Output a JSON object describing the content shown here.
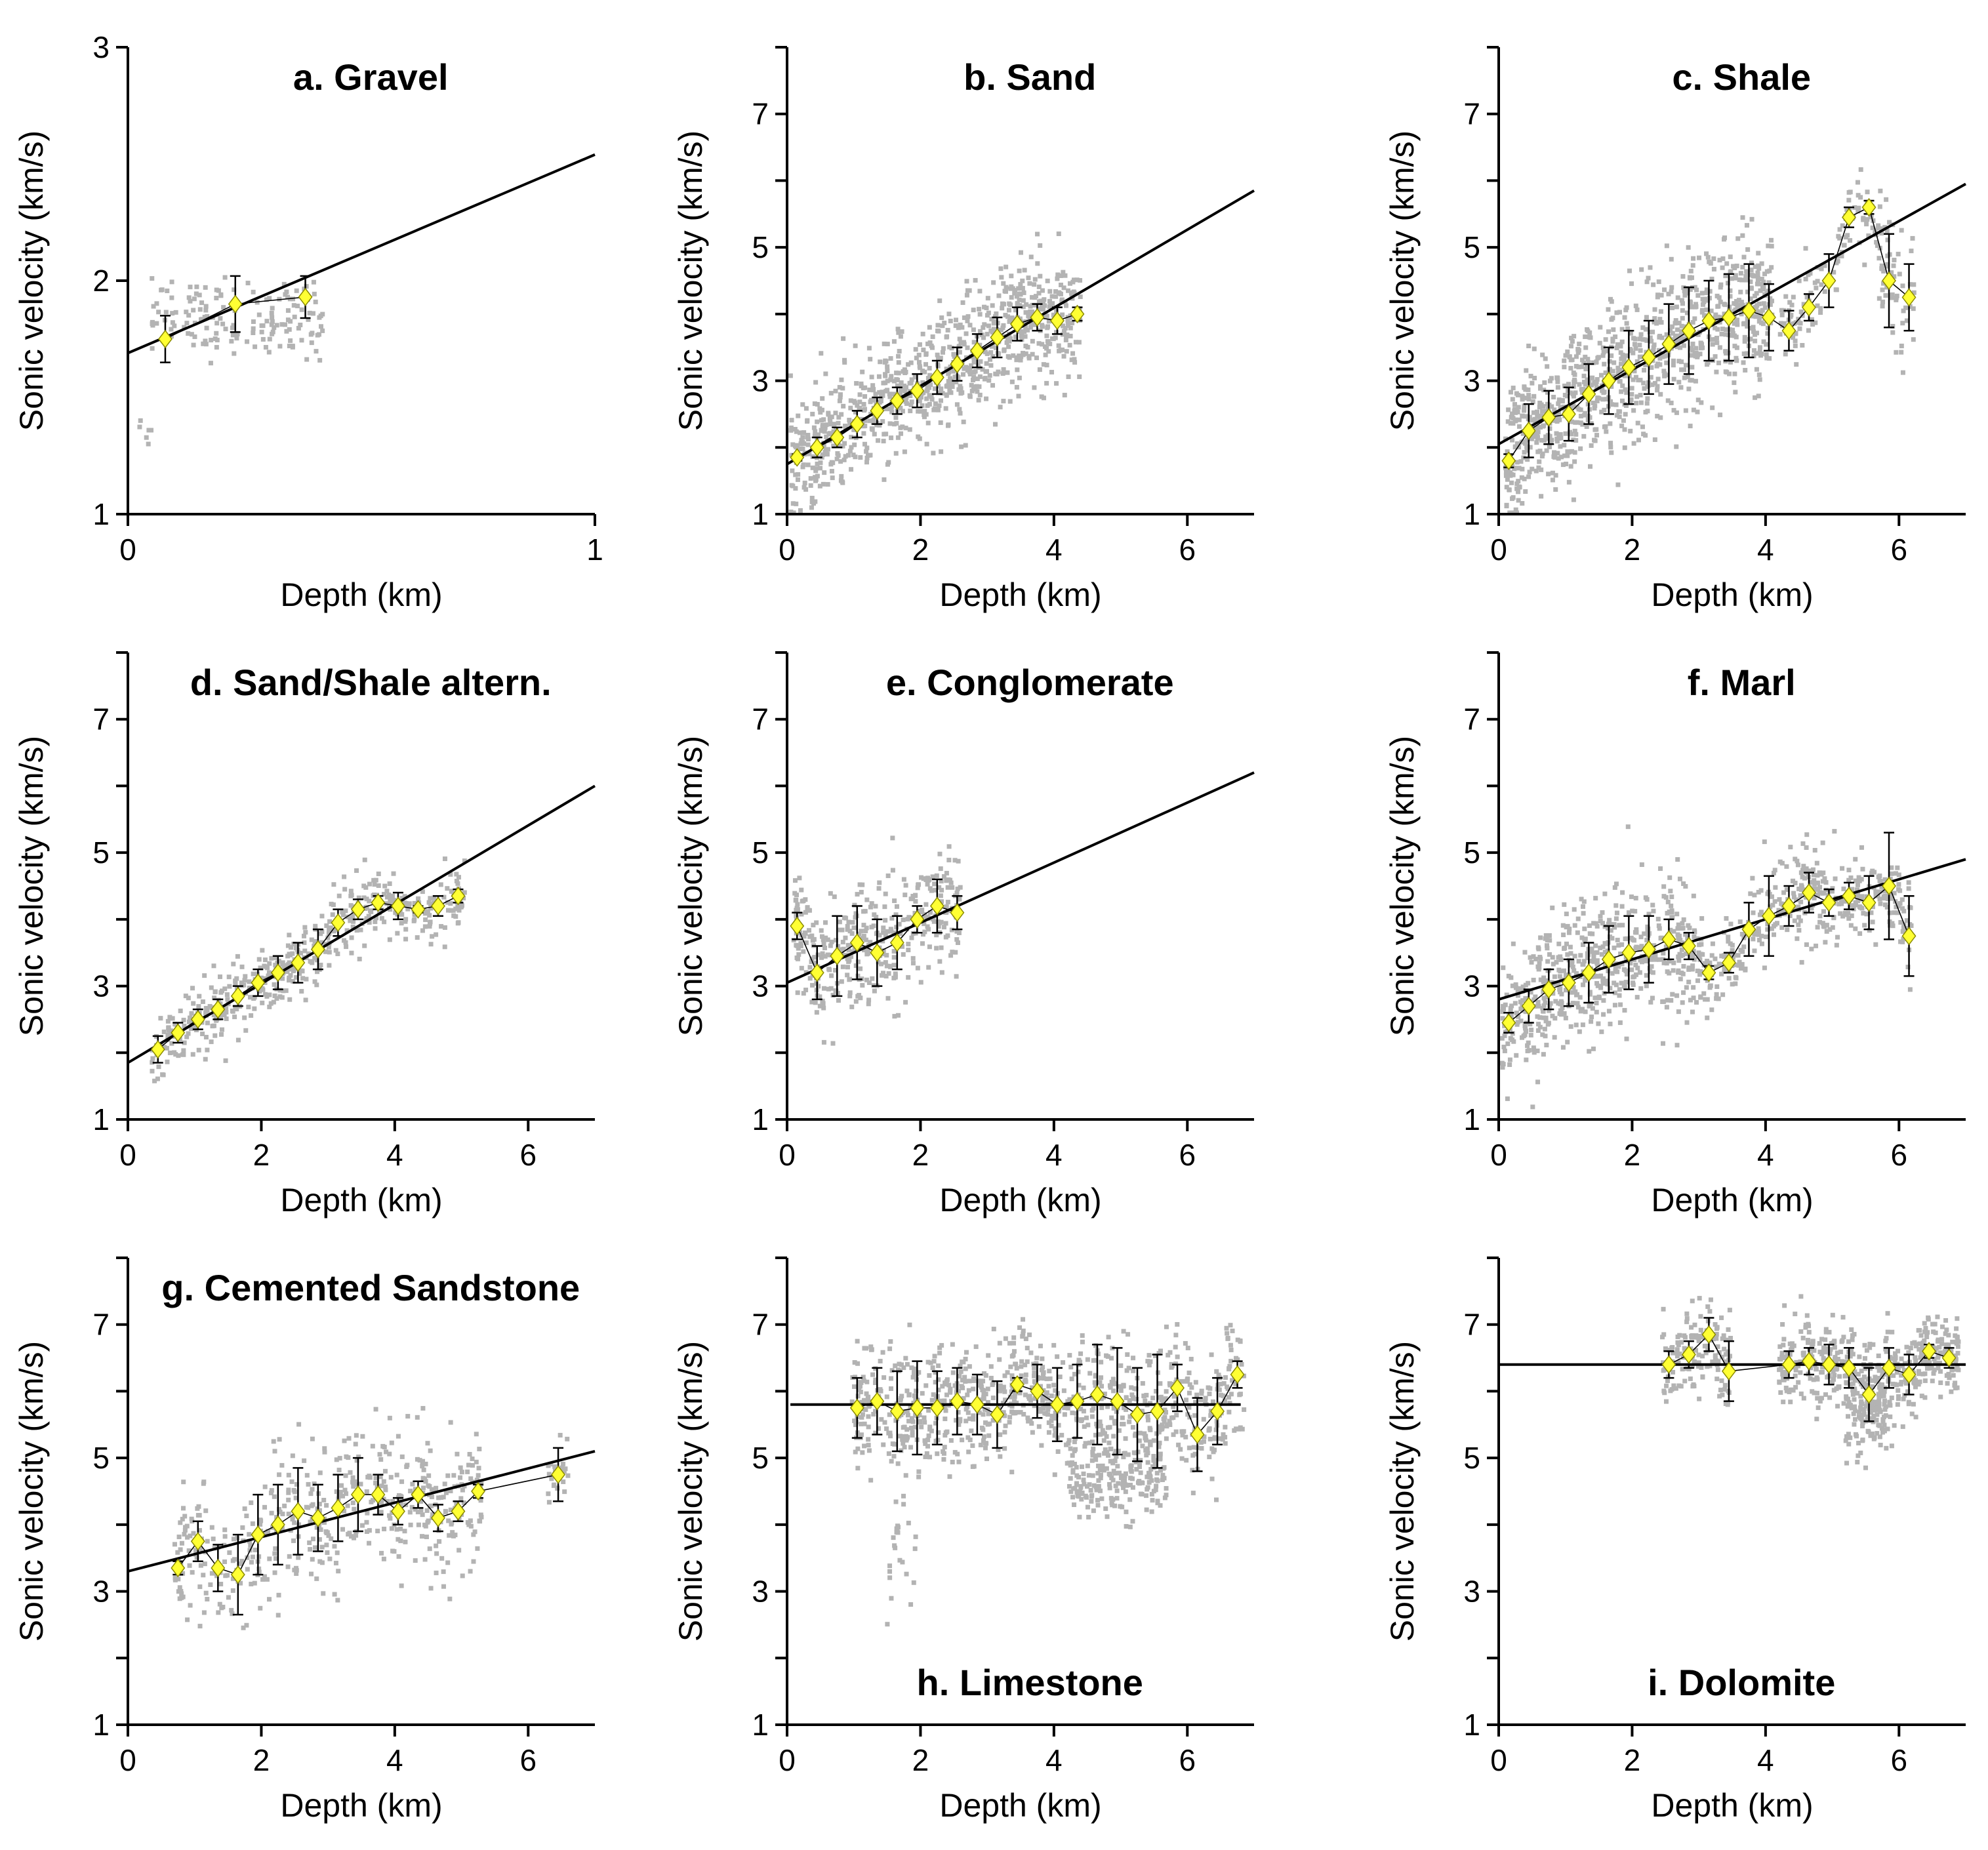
{
  "figure": {
    "shared_y_label": "Sonic velocity (km/s)",
    "shared_x_label": "Depth (km)"
  },
  "chart_data": [
    {
      "id": "a",
      "type": "scatter",
      "title": "a. Gravel",
      "title_position": "top",
      "xlabel": "Depth (km)",
      "ylabel": "Sonic velocity (km/s)",
      "xlim": [
        0,
        1
      ],
      "ylim": [
        1,
        3
      ],
      "xticks": [
        0,
        1
      ],
      "yticks": [
        1,
        2,
        3
      ],
      "ytick_labels": [
        "1",
        "2",
        "3"
      ],
      "fit_line": {
        "x": [
          0,
          1
        ],
        "y": [
          1.69,
          2.54
        ]
      },
      "scatter_clusters": [
        {
          "x": [
            0.02,
            0.05
          ],
          "y_center": 1.38,
          "y_spread": 0.05,
          "n": 6
        },
        {
          "x": [
            0.05,
            0.42
          ],
          "y_center": 1.84,
          "y_spread": 0.08,
          "n": 160
        }
      ],
      "binned_means": {
        "x": [
          0.08,
          0.23,
          0.38
        ],
        "y": [
          1.75,
          1.9,
          1.93
        ],
        "sd": [
          0.1,
          0.12,
          0.09
        ]
      }
    },
    {
      "id": "b",
      "type": "scatter",
      "title": "b. Sand",
      "title_position": "top",
      "xlabel": "Depth (km)",
      "ylabel": "Sonic velocity (km/s)",
      "xlim": [
        0,
        7
      ],
      "ylim": [
        1,
        8
      ],
      "xticks": [
        0,
        2,
        4,
        6
      ],
      "yticks": [
        1,
        2,
        3,
        4,
        5,
        6,
        7,
        8
      ],
      "ytick_labels": [
        "1",
        "",
        "3",
        "",
        "5",
        "",
        "7",
        ""
      ],
      "fit_line": {
        "x": [
          0,
          7
        ],
        "y": [
          1.75,
          5.85
        ]
      },
      "scatter_clusters": [
        {
          "x": [
            0.05,
            4.4
          ],
          "y_center": "mean",
          "y_spread": 0.45,
          "n": 900
        }
      ],
      "binned_means": {
        "x": [
          0.15,
          0.45,
          0.75,
          1.05,
          1.35,
          1.65,
          1.95,
          2.25,
          2.55,
          2.85,
          3.15,
          3.45,
          3.75,
          4.05,
          4.35
        ],
        "y": [
          1.85,
          2.0,
          2.15,
          2.35,
          2.55,
          2.7,
          2.85,
          3.05,
          3.25,
          3.45,
          3.65,
          3.85,
          3.95,
          3.9,
          4.0
        ],
        "sd": [
          0.05,
          0.15,
          0.15,
          0.2,
          0.2,
          0.2,
          0.25,
          0.25,
          0.25,
          0.25,
          0.3,
          0.25,
          0.2,
          0.2,
          0.1
        ]
      }
    },
    {
      "id": "c",
      "type": "scatter",
      "title": "c. Shale",
      "title_position": "top",
      "xlabel": "Depth (km)",
      "ylabel": "Sonic velocity (km/s)",
      "xlim": [
        0,
        7
      ],
      "ylim": [
        1,
        8
      ],
      "xticks": [
        0,
        2,
        4,
        6
      ],
      "yticks": [
        1,
        2,
        3,
        4,
        5,
        6,
        7,
        8
      ],
      "ytick_labels": [
        "1",
        "",
        "3",
        "",
        "5",
        "",
        "7",
        ""
      ],
      "fit_line": {
        "x": [
          0,
          7
        ],
        "y": [
          2.05,
          5.95
        ]
      },
      "scatter_clusters": [
        {
          "x": [
            0.1,
            4.1
          ],
          "y_center": "mean",
          "y_spread": 0.55,
          "n": 1000
        },
        {
          "x": [
            4.2,
            4.9
          ],
          "y_center": "mean",
          "y_spread": 0.3,
          "n": 60
        },
        {
          "x": [
            5.0,
            5.7
          ],
          "y_center": "mean",
          "y_spread": 0.25,
          "n": 60
        },
        {
          "x": [
            5.7,
            6.25
          ],
          "y_center": "mean",
          "y_spread": 0.5,
          "n": 60
        }
      ],
      "binned_means": {
        "x": [
          0.15,
          0.45,
          0.75,
          1.05,
          1.35,
          1.65,
          1.95,
          2.25,
          2.55,
          2.85,
          3.15,
          3.45,
          3.75,
          4.05,
          4.35,
          4.65,
          4.95,
          5.25,
          5.55,
          5.85,
          6.15
        ],
        "y": [
          1.8,
          2.25,
          2.45,
          2.5,
          2.8,
          3.0,
          3.2,
          3.35,
          3.55,
          3.75,
          3.9,
          3.95,
          4.05,
          3.95,
          3.75,
          4.1,
          4.5,
          5.45,
          5.6,
          4.5,
          4.25
        ],
        "sd": [
          0.1,
          0.4,
          0.4,
          0.4,
          0.45,
          0.5,
          0.55,
          0.55,
          0.6,
          0.65,
          0.6,
          0.65,
          0.7,
          0.5,
          0.3,
          0.2,
          0.4,
          0.15,
          0.1,
          0.7,
          0.5
        ]
      }
    },
    {
      "id": "d",
      "type": "scatter",
      "title": "d. Sand/Shale altern.",
      "title_position": "top",
      "xlabel": "Depth (km)",
      "ylabel": "Sonic velocity (km/s)",
      "xlim": [
        0,
        7
      ],
      "ylim": [
        1,
        8
      ],
      "xticks": [
        0,
        2,
        4,
        6
      ],
      "yticks": [
        1,
        2,
        3,
        4,
        5,
        6,
        7,
        8
      ],
      "ytick_labels": [
        "1",
        "",
        "3",
        "",
        "5",
        "",
        "7",
        ""
      ],
      "fit_line": {
        "x": [
          0,
          7
        ],
        "y": [
          1.85,
          6.0
        ]
      },
      "scatter_clusters": [
        {
          "x": [
            0.35,
            5.05
          ],
          "y_center": "mean",
          "y_spread": 0.25,
          "n": 500
        }
      ],
      "binned_means": {
        "x": [
          0.45,
          0.75,
          1.05,
          1.35,
          1.65,
          1.95,
          2.25,
          2.55,
          2.85,
          3.15,
          3.45,
          3.75,
          4.05,
          4.35,
          4.65,
          4.95
        ],
        "y": [
          2.05,
          2.3,
          2.5,
          2.65,
          2.85,
          3.05,
          3.2,
          3.35,
          3.55,
          3.95,
          4.15,
          4.25,
          4.2,
          4.15,
          4.2,
          4.35
        ],
        "sd": [
          0.2,
          0.15,
          0.15,
          0.15,
          0.15,
          0.2,
          0.25,
          0.3,
          0.3,
          0.2,
          0.15,
          0.1,
          0.2,
          0.05,
          0.15,
          0.1
        ]
      }
    },
    {
      "id": "e",
      "type": "scatter",
      "title": "e. Conglomerate",
      "title_position": "top",
      "xlabel": "Depth (km)",
      "ylabel": "Sonic velocity (km/s)",
      "xlim": [
        0,
        7
      ],
      "ylim": [
        1,
        8
      ],
      "xticks": [
        0,
        2,
        4,
        6
      ],
      "yticks": [
        1,
        2,
        3,
        4,
        5,
        6,
        7,
        8
      ],
      "ytick_labels": [
        "1",
        "",
        "3",
        "",
        "5",
        "",
        "7",
        ""
      ],
      "fit_line": {
        "x": [
          0,
          7
        ],
        "y": [
          3.05,
          6.2
        ]
      },
      "scatter_clusters": [
        {
          "x": [
            0.1,
            2.6
          ],
          "y_center": "mean",
          "y_spread": 0.45,
          "n": 400
        }
      ],
      "binned_means": {
        "x": [
          0.15,
          0.45,
          0.75,
          1.05,
          1.35,
          1.65,
          1.95,
          2.25,
          2.55
        ],
        "y": [
          3.9,
          3.2,
          3.45,
          3.65,
          3.5,
          3.65,
          4.0,
          4.2,
          4.1
        ],
        "sd": [
          0.2,
          0.4,
          0.6,
          0.55,
          0.5,
          0.4,
          0.2,
          0.4,
          0.25
        ]
      }
    },
    {
      "id": "f",
      "type": "scatter",
      "title": "f. Marl",
      "title_position": "top",
      "xlabel": "Depth (km)",
      "ylabel": "Sonic velocity (km/s)",
      "xlim": [
        0,
        7
      ],
      "ylim": [
        1,
        8
      ],
      "xticks": [
        0,
        2,
        4,
        6
      ],
      "yticks": [
        1,
        2,
        3,
        4,
        5,
        6,
        7,
        8
      ],
      "ytick_labels": [
        "1",
        "",
        "3",
        "",
        "5",
        "",
        "7",
        ""
      ],
      "fit_line": {
        "x": [
          0,
          7
        ],
        "y": [
          2.8,
          4.9
        ]
      },
      "scatter_clusters": [
        {
          "x": [
            0.05,
            3.0
          ],
          "y_center": "mean",
          "y_spread": 0.5,
          "n": 600
        },
        {
          "x": [
            3.0,
            6.2
          ],
          "y_center": "mean",
          "y_spread": 0.35,
          "n": 400
        }
      ],
      "binned_means": {
        "x": [
          0.15,
          0.45,
          0.75,
          1.05,
          1.35,
          1.65,
          1.95,
          2.25,
          2.55,
          2.85,
          3.15,
          3.45,
          3.75,
          4.05,
          4.35,
          4.65,
          4.95,
          5.25,
          5.55,
          5.85,
          6.15
        ],
        "y": [
          2.45,
          2.7,
          2.95,
          3.05,
          3.2,
          3.4,
          3.5,
          3.55,
          3.7,
          3.6,
          3.2,
          3.35,
          3.85,
          4.05,
          4.2,
          4.4,
          4.25,
          4.35,
          4.25,
          4.5,
          3.75
        ],
        "sd": [
          0.15,
          0.25,
          0.3,
          0.35,
          0.45,
          0.5,
          0.55,
          0.5,
          0.3,
          0.2,
          0.1,
          0.15,
          0.4,
          0.6,
          0.3,
          0.3,
          0.2,
          0.2,
          0.4,
          0.8,
          0.6
        ]
      }
    },
    {
      "id": "g",
      "type": "scatter",
      "title": "g. Cemented Sandstone",
      "title_position": "top",
      "xlabel": "Depth (km)",
      "ylabel": "Sonic velocity (km/s)",
      "xlim": [
        0,
        7
      ],
      "ylim": [
        1,
        8
      ],
      "xticks": [
        0,
        2,
        4,
        6
      ],
      "yticks": [
        1,
        2,
        3,
        4,
        5,
        6,
        7,
        8
      ],
      "ytick_labels": [
        "1",
        "",
        "3",
        "",
        "5",
        "",
        "7",
        ""
      ],
      "fit_line": {
        "x": [
          0,
          7
        ],
        "y": [
          3.3,
          5.1
        ]
      },
      "scatter_clusters": [
        {
          "x": [
            0.7,
            5.3
          ],
          "y_center": "mean",
          "y_spread": 0.5,
          "n": 500
        },
        {
          "x": [
            6.3,
            6.6
          ],
          "y_center": "mean",
          "y_spread": 0.3,
          "n": 25
        }
      ],
      "binned_means": {
        "x": [
          0.75,
          1.05,
          1.35,
          1.65,
          1.95,
          2.25,
          2.55,
          2.85,
          3.15,
          3.45,
          3.75,
          4.05,
          4.35,
          4.65,
          4.95,
          5.25,
          6.45
        ],
        "y": [
          3.35,
          3.75,
          3.35,
          3.25,
          3.85,
          4.0,
          4.2,
          4.1,
          4.25,
          4.45,
          4.45,
          4.2,
          4.45,
          4.1,
          4.2,
          4.5,
          4.75
        ],
        "sd": [
          0.1,
          0.3,
          0.35,
          0.6,
          0.6,
          0.6,
          0.65,
          0.5,
          0.5,
          0.55,
          0.3,
          0.2,
          0.2,
          0.2,
          0.15,
          0.1,
          0.4
        ]
      }
    },
    {
      "id": "h",
      "type": "scatter",
      "title": "h. Limestone",
      "title_position": "bottom",
      "xlabel": "Depth (km)",
      "ylabel": "Sonic velocity (km/s)",
      "xlim": [
        0,
        7
      ],
      "ylim": [
        1,
        8
      ],
      "xticks": [
        0,
        2,
        4,
        6
      ],
      "yticks": [
        1,
        2,
        3,
        4,
        5,
        6,
        7,
        8
      ],
      "ytick_labels": [
        "1",
        "",
        "3",
        "",
        "5",
        "",
        "7",
        ""
      ],
      "fit_line": {
        "x": [
          0.05,
          6.8
        ],
        "y": [
          5.8,
          5.8
        ]
      },
      "scatter_clusters": [
        {
          "x": [
            0.95,
            6.85
          ],
          "y_center": "mean",
          "y_spread": 0.45,
          "n": 900
        },
        {
          "x": [
            1.5,
            1.95
          ],
          "y_center": 3.8,
          "y_spread": 0.5,
          "n": 25
        },
        {
          "x": [
            4.2,
            5.7
          ],
          "y_center": 4.7,
          "y_spread": 0.3,
          "n": 200
        }
      ],
      "binned_means": {
        "x": [
          1.05,
          1.35,
          1.65,
          1.95,
          2.25,
          2.55,
          2.85,
          3.15,
          3.45,
          3.75,
          4.05,
          4.35,
          4.65,
          4.95,
          5.25,
          5.55,
          5.85,
          6.15,
          6.45,
          6.75
        ],
        "y": [
          5.75,
          5.85,
          5.7,
          5.75,
          5.75,
          5.85,
          5.8,
          5.65,
          6.1,
          6.0,
          5.8,
          5.85,
          5.95,
          5.85,
          5.65,
          5.7,
          6.05,
          5.35,
          5.7,
          6.25
        ],
        "sd": [
          0.45,
          0.5,
          0.6,
          0.7,
          0.55,
          0.5,
          0.45,
          0.5,
          0.1,
          0.4,
          0.55,
          0.55,
          0.75,
          0.8,
          0.7,
          0.85,
          0.35,
          0.55,
          0.5,
          0.2
        ]
      }
    },
    {
      "id": "i",
      "type": "scatter",
      "title": "i. Dolomite",
      "title_position": "bottom",
      "xlabel": "Depth (km)",
      "ylabel": "Sonic velocity (km/s)",
      "xlim": [
        0,
        7
      ],
      "ylim": [
        1,
        8
      ],
      "xticks": [
        0,
        2,
        4,
        6
      ],
      "yticks": [
        1,
        2,
        3,
        4,
        5,
        6,
        7,
        8
      ],
      "ytick_labels": [
        "1",
        "",
        "3",
        "",
        "5",
        "",
        "7",
        ""
      ],
      "fit_line": {
        "x": [
          0,
          7
        ],
        "y": [
          6.4,
          6.4
        ]
      },
      "scatter_clusters": [
        {
          "x": [
            2.45,
            3.5
          ],
          "y_center": "mean",
          "y_spread": 0.35,
          "n": 150
        },
        {
          "x": [
            4.2,
            6.9
          ],
          "y_center": "mean",
          "y_spread": 0.3,
          "n": 500
        },
        {
          "x": [
            5.2,
            5.9
          ],
          "y_center": 5.6,
          "y_spread": 0.35,
          "n": 100
        }
      ],
      "binned_means": {
        "x": [
          2.55,
          2.85,
          3.15,
          3.45,
          4.35,
          4.65,
          4.95,
          5.25,
          5.55,
          5.85,
          6.15,
          6.45,
          6.75
        ],
        "y": [
          6.4,
          6.55,
          6.85,
          6.3,
          6.4,
          6.45,
          6.4,
          6.35,
          5.95,
          6.35,
          6.25,
          6.6,
          6.5
        ],
        "sd": [
          0.2,
          0.2,
          0.25,
          0.45,
          0.2,
          0.2,
          0.3,
          0.3,
          0.4,
          0.3,
          0.3,
          0.1,
          0.15
        ]
      }
    }
  ]
}
